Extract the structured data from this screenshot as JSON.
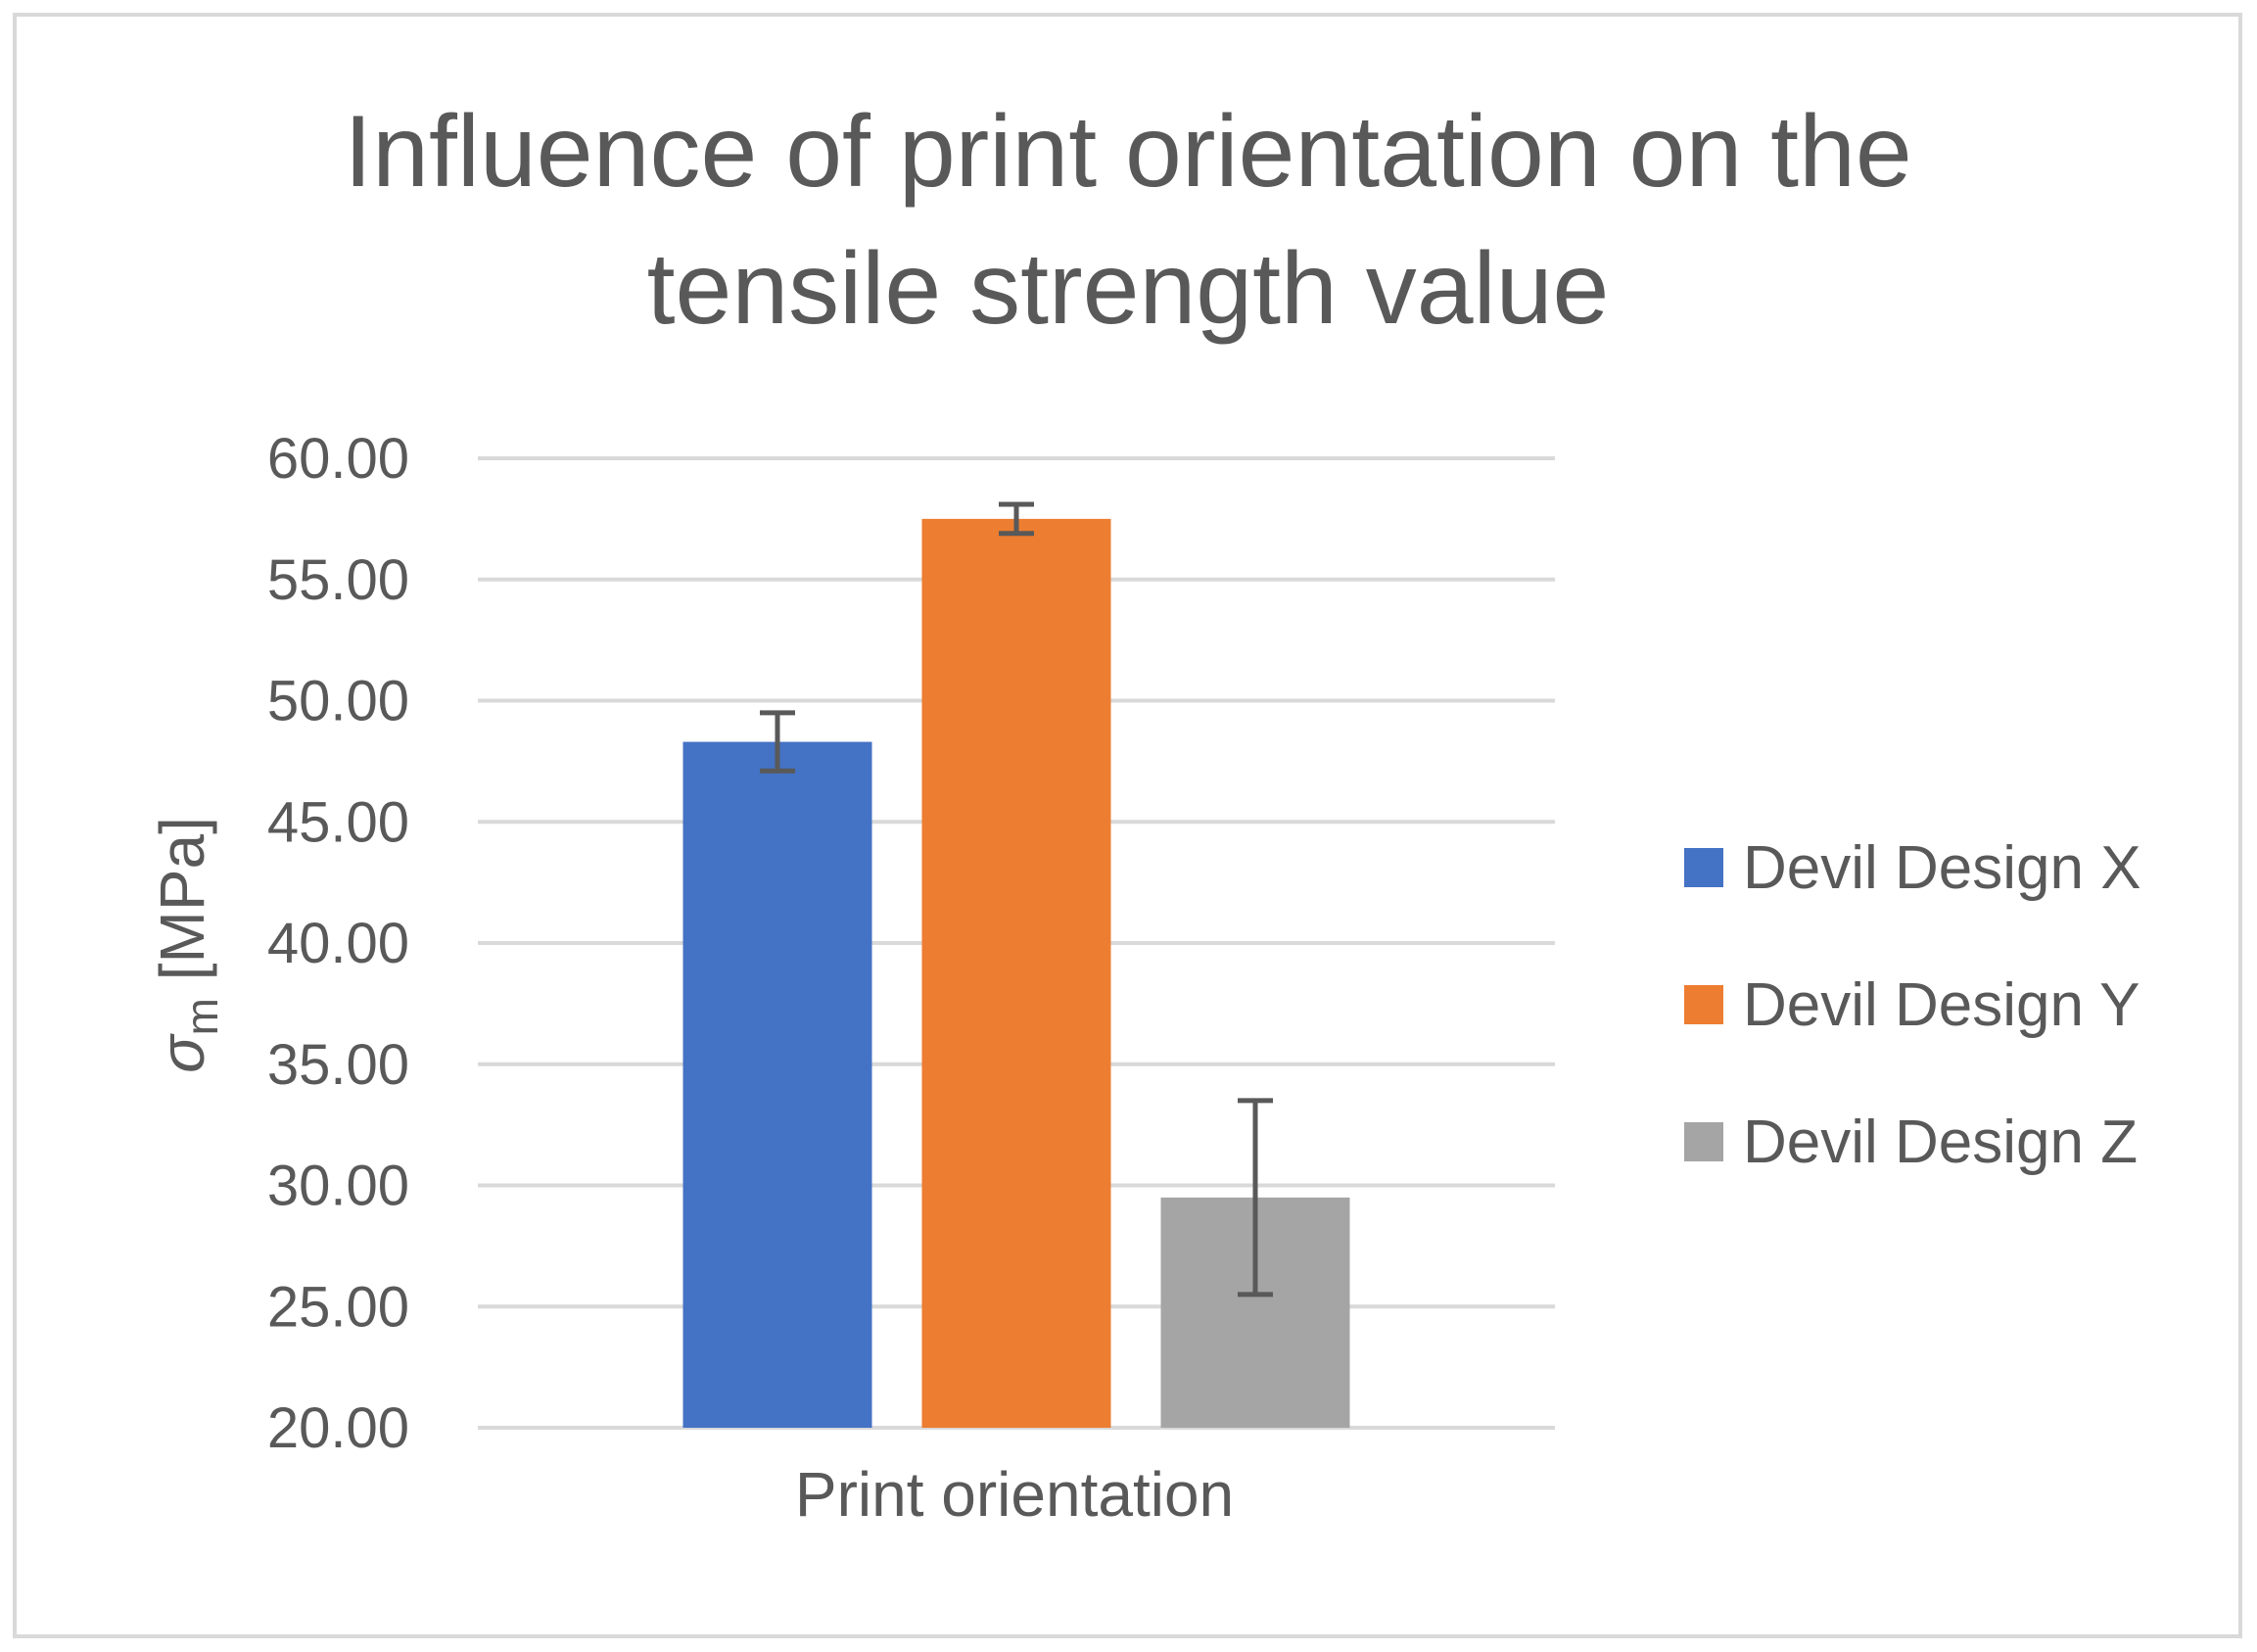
{
  "chart_data": {
    "type": "bar",
    "title": "Influence of print orientation on the tensile strength value",
    "title_lines": [
      "Influence of print orientation on the",
      "tensile strength value"
    ],
    "xlabel": "Print orientation",
    "ylabel": {
      "symbol": "σ",
      "subscript": "m",
      "unit": " [MPa]"
    },
    "categories": [
      "Print orientation"
    ],
    "series": [
      {
        "name": "Devil Design X",
        "values": [
          48.3
        ],
        "error": [
          1.2
        ],
        "color": "#4472C4"
      },
      {
        "name": "Devil Design Y",
        "values": [
          57.5
        ],
        "error": [
          0.6
        ],
        "color": "#ED7D31"
      },
      {
        "name": "Devil Design Z",
        "values": [
          29.5
        ],
        "error": [
          4.0
        ],
        "color": "#A5A5A5"
      }
    ],
    "ylim": [
      20,
      60
    ],
    "yticks": [
      20,
      25,
      30,
      35,
      40,
      45,
      50,
      55,
      60
    ],
    "ytick_labels": [
      "20.00",
      "25.00",
      "30.00",
      "35.00",
      "40.00",
      "45.00",
      "50.00",
      "55.00",
      "60.00"
    ],
    "grid": true,
    "legend_position": "right",
    "colors": {
      "text": "#595959",
      "gridline": "#D9D9D9",
      "error_bar": "#595959",
      "border": "#D9D9D9"
    }
  }
}
